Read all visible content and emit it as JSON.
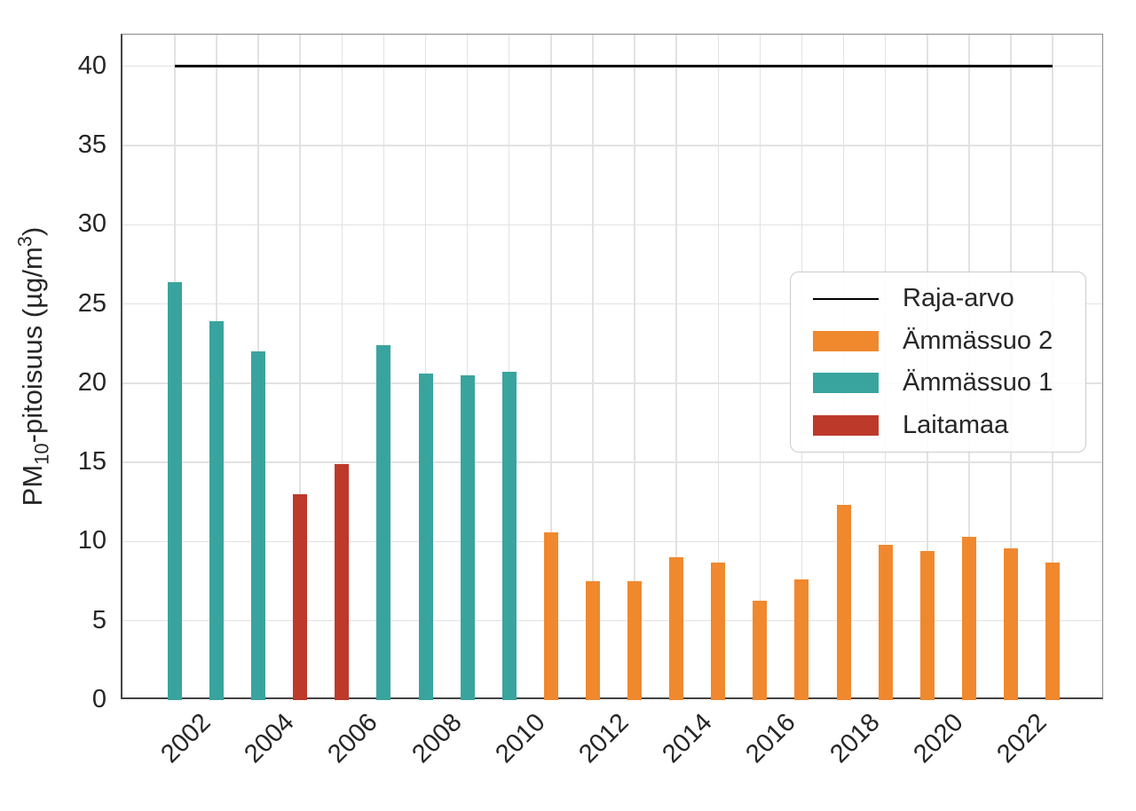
{
  "chart_data": {
    "type": "bar",
    "title": "",
    "xlabel": "",
    "ylabel": "PM10-pitoisuus (µg/m³)",
    "ylabel_parts": {
      "prefix": "PM",
      "sub": "10",
      "mid": "-pitoisuus (µg/m",
      "sup": "3",
      "suffix": ")"
    },
    "ylim": [
      0,
      42
    ],
    "xlim": [
      2000.75,
      2024.25
    ],
    "y_ticks": [
      0,
      5,
      10,
      15,
      20,
      25,
      30,
      35,
      40
    ],
    "x_ticks": [
      2002,
      2004,
      2006,
      2008,
      2010,
      2012,
      2014,
      2016,
      2018,
      2020,
      2022
    ],
    "grid": true,
    "series_colors": {
      "Ämmässuo 2": "#f0882e",
      "Ämmässuo 1": "#39a49e",
      "Laitamaa": "#bd3a2b"
    },
    "bars": [
      {
        "year": 2002,
        "value": 26.4,
        "series": "Ämmässuo 1"
      },
      {
        "year": 2003,
        "value": 23.9,
        "series": "Ämmässuo 1"
      },
      {
        "year": 2004,
        "value": 22.0,
        "series": "Ämmässuo 1"
      },
      {
        "year": 2005,
        "value": 13.0,
        "series": "Laitamaa"
      },
      {
        "year": 2006,
        "value": 14.9,
        "series": "Laitamaa"
      },
      {
        "year": 2007,
        "value": 22.4,
        "series": "Ämmässuo 1"
      },
      {
        "year": 2008,
        "value": 20.6,
        "series": "Ämmässuo 1"
      },
      {
        "year": 2009,
        "value": 20.5,
        "series": "Ämmässuo 1"
      },
      {
        "year": 2010,
        "value": 20.7,
        "series": "Ämmässuo 1"
      },
      {
        "year": 2011,
        "value": 10.6,
        "series": "Ämmässuo 2"
      },
      {
        "year": 2012,
        "value": 7.5,
        "series": "Ämmässuo 2"
      },
      {
        "year": 2013,
        "value": 7.5,
        "series": "Ämmässuo 2"
      },
      {
        "year": 2014,
        "value": 9.0,
        "series": "Ämmässuo 2"
      },
      {
        "year": 2015,
        "value": 8.7,
        "series": "Ämmässuo 2"
      },
      {
        "year": 2016,
        "value": 6.3,
        "series": "Ämmässuo 2"
      },
      {
        "year": 2017,
        "value": 7.6,
        "series": "Ämmässuo 2"
      },
      {
        "year": 2018,
        "value": 12.3,
        "series": "Ämmässuo 2"
      },
      {
        "year": 2019,
        "value": 9.8,
        "series": "Ämmässuo 2"
      },
      {
        "year": 2020,
        "value": 9.4,
        "series": "Ämmässuo 2"
      },
      {
        "year": 2021,
        "value": 10.3,
        "series": "Ämmässuo 2"
      },
      {
        "year": 2022,
        "value": 9.6,
        "series": "Ämmässuo 2"
      },
      {
        "year": 2023,
        "value": 8.7,
        "series": "Ämmässuo 2"
      }
    ],
    "limit_line": {
      "label": "Raja-arvo",
      "value": 40,
      "color": "#000000",
      "x_start": 2002,
      "x_end": 2023
    },
    "legend": {
      "position": "upper right",
      "items": [
        {
          "label": "Raja-arvo",
          "swatch": "line",
          "color": "#000000"
        },
        {
          "label": "Ämmässuo 2",
          "swatch": "patch",
          "color": "#f0882e"
        },
        {
          "label": "Ämmässuo 1",
          "swatch": "patch",
          "color": "#39a49e"
        },
        {
          "label": "Laitamaa",
          "swatch": "patch",
          "color": "#bd3a2b"
        }
      ]
    }
  }
}
